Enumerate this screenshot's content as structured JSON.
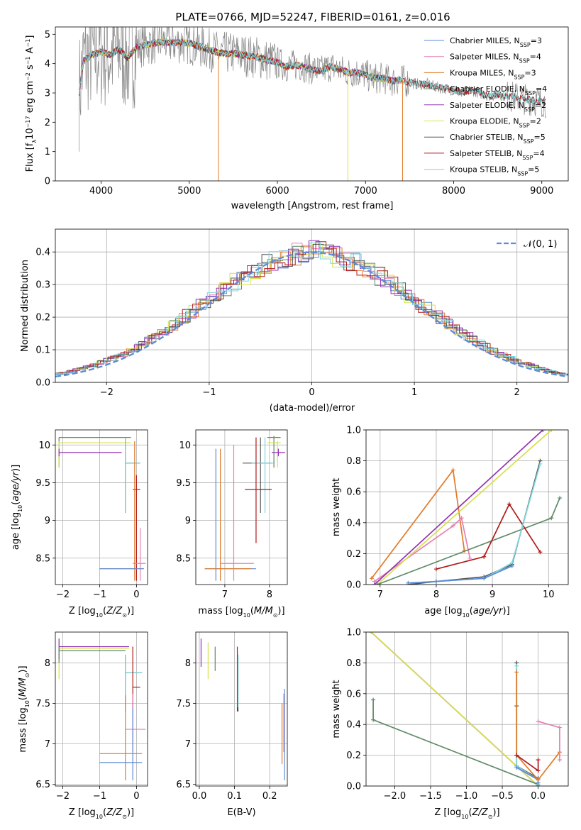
{
  "figure": {
    "title": "PLATE=0766, MJD=52247, FIBERID=0161, z=0.016"
  },
  "colors": {
    "Chabrier MILES": "#5b8bd9",
    "Salpeter MILES": "#e67fb4",
    "Kroupa MILES": "#e07b2a",
    "Chabrier ELODIE": "#5f8a67",
    "Salpeter ELODIE": "#9333b5",
    "Kroupa ELODIE": "#d6e04a",
    "Chabrier STELIB": "#555555",
    "Salpeter STELIB": "#b01a1a",
    "Kroupa STELIB": "#7fd6dc",
    "data": "#888888",
    "normal": "#5b8bd9"
  },
  "chart_data": [
    {
      "id": "spectrum",
      "type": "line",
      "title": "PLATE=0766, MJD=52247, FIBERID=0161, z=0.016",
      "xlabel": "wavelength [Angstrom, rest frame]",
      "ylabel": "Flux [f_λ 10^-17 erg cm^-2 s^-1 A^-1]",
      "xlim": [
        3480,
        9300
      ],
      "ylim": [
        0,
        5.25
      ],
      "xticks": [
        4000,
        5000,
        6000,
        7000,
        8000,
        9000
      ],
      "yticks": [
        0,
        1,
        2,
        3,
        4,
        5
      ],
      "grid": false,
      "legend": "top-right",
      "legend_entries": [
        {
          "text": "Chabrier MILES, N",
          "sub": "SSP",
          "tail": "=3",
          "color": "Chabrier MILES"
        },
        {
          "text": "Salpeter MILES, N",
          "sub": "SSP",
          "tail": "=4",
          "color": "Salpeter MILES"
        },
        {
          "text": "Kroupa MILES, N",
          "sub": "SSP",
          "tail": "=3",
          "color": "Kroupa MILES"
        },
        {
          "text": "Chabrier ELODIE, N",
          "sub": "SSP",
          "tail": "=4",
          "color": "Chabrier ELODIE"
        },
        {
          "text": "Salpeter ELODIE, N",
          "sub": "SSP",
          "tail": "=2",
          "color": "Salpeter ELODIE"
        },
        {
          "text": "Kroupa ELODIE, N",
          "sub": "SSP",
          "tail": "=2",
          "color": "Kroupa ELODIE"
        },
        {
          "text": "Chabrier STELIB, N",
          "sub": "SSP",
          "tail": "=5",
          "color": "Chabrier STELIB"
        },
        {
          "text": "Salpeter STELIB, N",
          "sub": "SSP",
          "tail": "=4",
          "color": "Salpeter STELIB"
        },
        {
          "text": "Kroupa STELIB, N",
          "sub": "SSP",
          "tail": "=5",
          "color": "Kroupa STELIB"
        }
      ],
      "model_continuum": {
        "x": [
          3750,
          3800,
          3900,
          4000,
          4100,
          4200,
          4300,
          4400,
          4500,
          4600,
          4700,
          4800,
          4900,
          5000,
          5100,
          5200,
          5300,
          5400,
          5500,
          5600,
          5700,
          5800,
          5900,
          6000,
          6100,
          6200,
          6300,
          6400,
          6500,
          6600,
          6700,
          6800,
          6900,
          7000,
          7100,
          7200,
          7300,
          7400,
          7500,
          7600,
          7700,
          7800,
          7900,
          8000,
          8100,
          8200,
          8300,
          8400,
          8500,
          8600,
          8700,
          8800,
          8900,
          9000,
          9050
        ],
        "y": [
          3.0,
          4.1,
          4.3,
          4.4,
          4.3,
          4.5,
          4.2,
          4.55,
          4.65,
          4.7,
          4.75,
          4.7,
          4.72,
          4.7,
          4.6,
          4.5,
          4.4,
          4.35,
          4.35,
          4.3,
          4.25,
          4.2,
          4.1,
          4.05,
          3.9,
          3.95,
          3.9,
          3.8,
          3.75,
          3.9,
          3.8,
          3.7,
          3.7,
          3.6,
          3.5,
          3.5,
          3.4,
          3.45,
          3.35,
          3.3,
          3.3,
          3.2,
          3.15,
          3.1,
          3.0,
          3.1,
          3.0,
          2.9,
          2.95,
          2.9,
          2.85,
          2.8,
          2.75,
          2.7,
          2.7
        ]
      }
    },
    {
      "id": "residuals",
      "type": "line",
      "xlabel": "(data-model)/error",
      "ylabel": "Normed distribution",
      "xlim": [
        -2.5,
        2.5
      ],
      "ylim": [
        0,
        0.47
      ],
      "xticks": [
        -2,
        -1,
        0,
        1,
        2
      ],
      "yticks": [
        0.0,
        0.1,
        0.2,
        0.3,
        0.4
      ],
      "grid": true,
      "legend": "top-right",
      "legend_label": "𝒩(0, 1)"
    },
    {
      "id": "age-vs-Z",
      "type": "scatter",
      "xlabel": "Z [log10(Z/Z⊙)]",
      "ylabel": "age [log10(age/yr)]",
      "xlim": [
        -2.2,
        0.3
      ],
      "ylim": [
        8.15,
        10.2
      ],
      "xticks": [
        -2,
        -1,
        0
      ],
      "yticks": [
        8.5,
        9.0,
        9.5,
        10.0
      ],
      "grid": true
    },
    {
      "id": "age-vs-mass",
      "type": "scatter",
      "xlabel": "mass [log10(M/M⊙)]",
      "ylabel": "",
      "xlim": [
        6.35,
        8.4
      ],
      "ylim": [
        8.15,
        10.2
      ],
      "xticks": [
        7,
        8
      ],
      "yticks": [
        8.5,
        9.0,
        9.5,
        10.0
      ],
      "grid": true
    },
    {
      "id": "weight-vs-age",
      "type": "line",
      "xlabel": "age [log10(age/yr)]",
      "ylabel": "mass weight",
      "xlim": [
        6.75,
        10.35
      ],
      "ylim": [
        0,
        1
      ],
      "xticks": [
        7,
        8,
        9,
        10
      ],
      "yticks": [
        0.0,
        0.2,
        0.4,
        0.6,
        0.8,
        1.0
      ],
      "grid": true,
      "series": [
        {
          "model": "Kroupa MILES",
          "x": [
            6.85,
            8.3,
            8.5
          ],
          "y": [
            0.04,
            0.74,
            0.22
          ]
        },
        {
          "model": "Salpeter MILES",
          "x": [
            6.9,
            8.3,
            8.45,
            8.6
          ],
          "y": [
            0.02,
            0.38,
            0.43,
            0.17
          ]
        },
        {
          "model": "Salpeter ELODIE",
          "x": [
            6.9,
            9.9
          ],
          "y": [
            0.0,
            1.0
          ]
        },
        {
          "model": "Kroupa ELODIE",
          "x": [
            6.95,
            10.05
          ],
          "y": [
            0.0,
            1.0
          ]
        },
        {
          "model": "Chabrier ELODIE",
          "x": [
            6.95,
            10.05,
            10.2
          ],
          "y": [
            0.0,
            0.43,
            0.56
          ]
        },
        {
          "model": "Salpeter STELIB",
          "x": [
            8.0,
            8.85,
            9.3,
            9.85
          ],
          "y": [
            0.1,
            0.18,
            0.52,
            0.21
          ]
        },
        {
          "model": "Chabrier STELIB",
          "x": [
            7.5,
            8.0,
            8.85,
            9.35,
            9.85
          ],
          "y": [
            0.0,
            0.02,
            0.05,
            0.13,
            0.8
          ]
        },
        {
          "model": "Kroupa STELIB",
          "x": [
            7.5,
            8.0,
            8.85,
            9.35,
            9.85
          ],
          "y": [
            0.01,
            0.02,
            0.04,
            0.14,
            0.78
          ]
        },
        {
          "model": "Chabrier MILES",
          "x": [
            7.5,
            8.0,
            8.85,
            9.35
          ],
          "y": [
            0.01,
            0.02,
            0.04,
            0.12
          ]
        }
      ]
    },
    {
      "id": "mass-vs-Z",
      "type": "scatter",
      "xlabel": "Z [log10(Z/Z⊙)]",
      "ylabel": "mass [log10(M/M⊙)]",
      "xlim": [
        -2.2,
        0.3
      ],
      "ylim": [
        6.48,
        8.38
      ],
      "xticks": [
        -2,
        -1,
        0
      ],
      "yticks": [
        6.5,
        7.0,
        7.5,
        8.0
      ],
      "grid": true
    },
    {
      "id": "mass-vs-EBV",
      "type": "scatter",
      "xlabel": "E(B-V)",
      "ylabel": "",
      "xlim": [
        -0.01,
        0.25
      ],
      "ylim": [
        6.48,
        8.38
      ],
      "xticks": [
        0.0,
        0.1,
        0.2
      ],
      "yticks": [
        6.5,
        7.0,
        7.5,
        8.0
      ],
      "grid": true
    },
    {
      "id": "weight-vs-Z",
      "type": "line",
      "xlabel": "Z [log10(Z/Z⊙)]",
      "ylabel": "mass weight",
      "xlim": [
        -2.4,
        0.42
      ],
      "ylim": [
        0,
        1
      ],
      "xticks": [
        -2.0,
        -1.5,
        -1.0,
        -0.5,
        0.0
      ],
      "yticks": [
        0.0,
        0.2,
        0.4,
        0.6,
        0.8,
        1.0
      ],
      "grid": true,
      "series": [
        {
          "model": "Salpeter ELODIE",
          "x": [
            -2.33,
            0.0
          ],
          "y": [
            1.0,
            0.0
          ]
        },
        {
          "model": "Kroupa ELODIE",
          "x": [
            -2.33,
            0.0
          ],
          "y": [
            1.0,
            0.0
          ]
        },
        {
          "model": "Chabrier ELODIE",
          "x": [
            -2.3,
            -2.3,
            0.0
          ],
          "y": [
            0.56,
            0.43,
            0.01
          ]
        },
        {
          "model": "Chabrier STELIB",
          "x": [
            -0.3,
            -0.3,
            -0.3,
            0.0,
            0.0
          ],
          "y": [
            0.8,
            0.52,
            0.13,
            0.05,
            0.0
          ]
        },
        {
          "model": "Kroupa STELIB",
          "x": [
            -0.3,
            -0.3,
            0.0,
            0.0
          ],
          "y": [
            0.78,
            0.13,
            0.04,
            0.01
          ]
        },
        {
          "model": "Chabrier MILES",
          "x": [
            -0.3,
            0.0,
            0.0
          ],
          "y": [
            0.12,
            0.04,
            0.02
          ]
        },
        {
          "model": "Kroupa MILES",
          "x": [
            -0.3,
            -0.3,
            0.0,
            0.3
          ],
          "y": [
            0.74,
            0.2,
            0.04,
            0.22
          ]
        },
        {
          "model": "Salpeter MILES",
          "x": [
            0.0,
            0.3,
            0.3
          ],
          "y": [
            0.42,
            0.38,
            0.17
          ]
        },
        {
          "model": "Salpeter STELIB",
          "x": [
            -0.3,
            0.0,
            0.0
          ],
          "y": [
            0.2,
            0.1,
            0.17
          ]
        }
      ]
    }
  ]
}
